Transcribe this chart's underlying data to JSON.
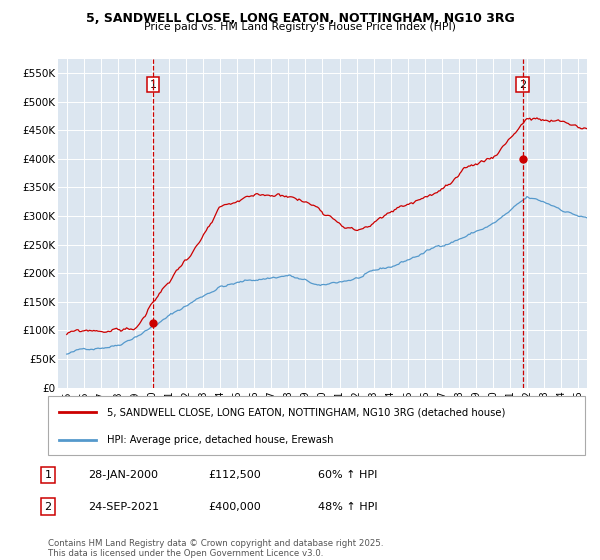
{
  "title1": "5, SANDWELL CLOSE, LONG EATON, NOTTINGHAM, NG10 3RG",
  "title2": "Price paid vs. HM Land Registry's House Price Index (HPI)",
  "background_color": "#dce6f0",
  "plot_bg_color": "#dce6f0",
  "grid_color": "#ffffff",
  "red_color": "#cc0000",
  "blue_color": "#5599cc",
  "ylim": [
    0,
    575000
  ],
  "yticks": [
    0,
    50000,
    100000,
    150000,
    200000,
    250000,
    300000,
    350000,
    400000,
    450000,
    500000,
    550000
  ],
  "ytick_labels": [
    "£0",
    "£50K",
    "£100K",
    "£150K",
    "£200K",
    "£250K",
    "£300K",
    "£350K",
    "£400K",
    "£450K",
    "£500K",
    "£550K"
  ],
  "xlim_start": 1994.5,
  "xlim_end": 2025.5,
  "xticks": [
    1995,
    1996,
    1997,
    1998,
    1999,
    2000,
    2001,
    2002,
    2003,
    2004,
    2005,
    2006,
    2007,
    2008,
    2009,
    2010,
    2011,
    2012,
    2013,
    2014,
    2015,
    2016,
    2017,
    2018,
    2019,
    2020,
    2021,
    2022,
    2023,
    2024,
    2025
  ],
  "sale1_x": 2000.07,
  "sale1_y": 112500,
  "sale1_label": "1",
  "sale2_x": 2021.73,
  "sale2_y": 400000,
  "sale2_label": "2",
  "legend_red": "5, SANDWELL CLOSE, LONG EATON, NOTTINGHAM, NG10 3RG (detached house)",
  "legend_blue": "HPI: Average price, detached house, Erewash",
  "annot1_date": "28-JAN-2000",
  "annot1_price": "£112,500",
  "annot1_hpi": "60% ↑ HPI",
  "annot2_date": "24-SEP-2021",
  "annot2_price": "£400,000",
  "annot2_hpi": "48% ↑ HPI",
  "footer": "Contains HM Land Registry data © Crown copyright and database right 2025.\nThis data is licensed under the Open Government Licence v3.0."
}
